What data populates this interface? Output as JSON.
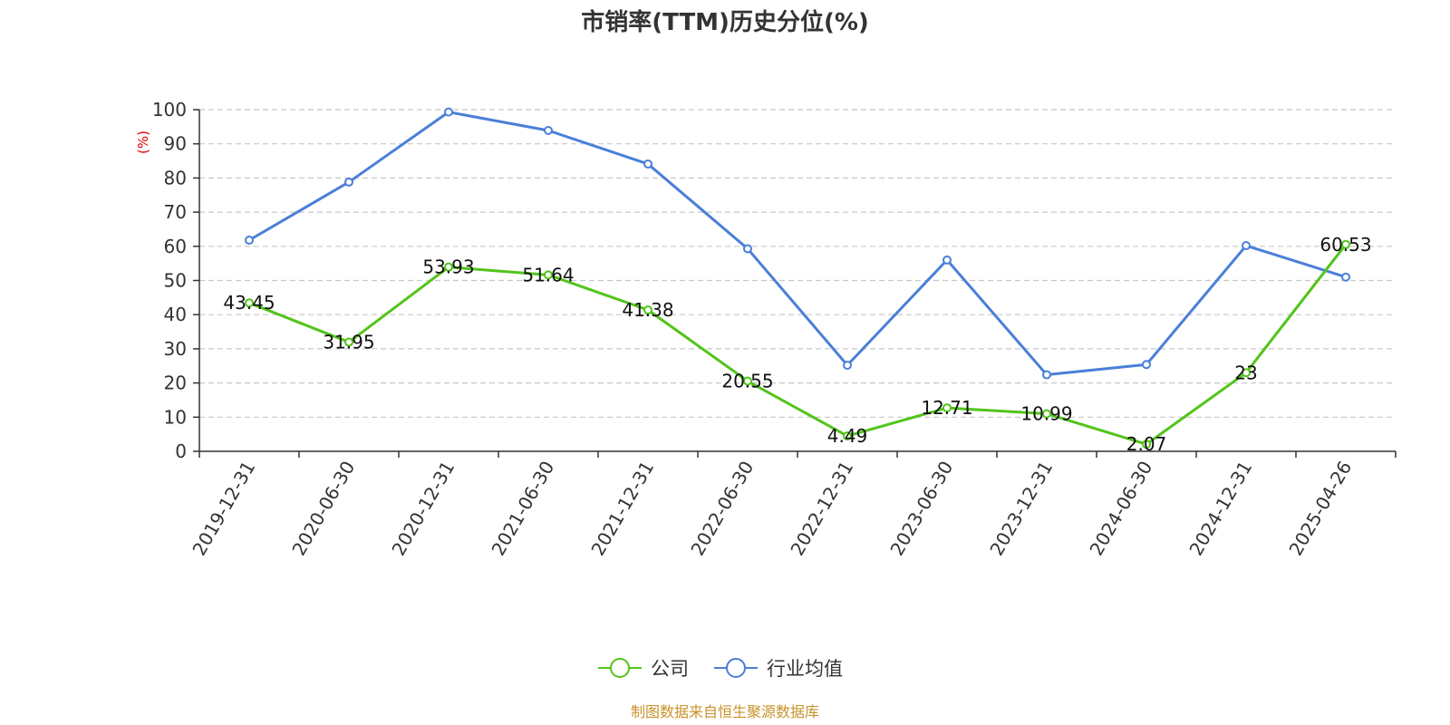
{
  "colors": {
    "company": "#52c41a",
    "industry": "#4a7fd9",
    "source": "#c8922a",
    "ylabel": "#e00000"
  },
  "source_text": "制图数据来自恒生聚源数据库",
  "chart_data": {
    "type": "line",
    "title": "市销率(TTM)历史分位(%)",
    "xlabel": "",
    "ylabel": "(%)",
    "ylim": [
      0,
      100
    ],
    "yticks": [
      0,
      10,
      20,
      30,
      40,
      50,
      60,
      70,
      80,
      90,
      100
    ],
    "grid": true,
    "legend_position": "bottom-center",
    "categories": [
      "2019-12-31",
      "2020-06-30",
      "2020-12-31",
      "2021-06-30",
      "2021-12-31",
      "2022-06-30",
      "2022-12-31",
      "2023-06-30",
      "2023-12-31",
      "2024-06-30",
      "2024-12-31",
      "2025-04-26"
    ],
    "series": [
      {
        "name": "公司",
        "color": "#52c41a",
        "values": [
          43.45,
          31.95,
          53.93,
          51.64,
          41.38,
          20.55,
          4.49,
          12.71,
          10.99,
          2.07,
          23,
          60.53
        ],
        "labels": [
          "43.45",
          "31.95",
          "53.93",
          "51.64",
          "41.38",
          "20.55",
          "4.49",
          "12.71",
          "10.99",
          "2.07",
          "23",
          "60.53"
        ]
      },
      {
        "name": "行业均值",
        "color": "#4a7fd9",
        "values": [
          61.8,
          78.8,
          99.3,
          93.9,
          84.1,
          59.3,
          25.2,
          56.0,
          22.4,
          25.4,
          60.2,
          51.0
        ]
      }
    ]
  }
}
